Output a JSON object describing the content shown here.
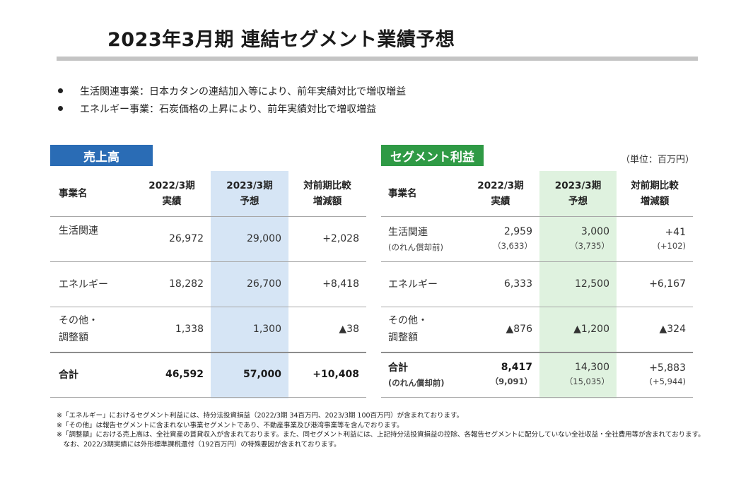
{
  "title": "2023年3月期 連結セグメント業績予想",
  "bullets": [
    "生活関連事業：日本カタンの連結加入等により、前年実績対比で増収増益",
    "エネルギー事業：石炭価格の上昇により、前年実績対比で増収増益"
  ],
  "colors": {
    "sales_tag": "#2a6cb5",
    "profit_tag": "#2f9a45",
    "sales_highlight": "#d6e5f5",
    "profit_highlight": "#dff2df"
  },
  "sales": {
    "tag": "売上高",
    "headers": {
      "name": "事業名",
      "prev_1": "2022/3期",
      "prev_2": "実績",
      "fcst_1": "2023/3期",
      "fcst_2": "予想",
      "diff_1": "対前期比較",
      "diff_2": "増減額"
    },
    "rows": [
      {
        "name": "生活関連",
        "prev": "26,972",
        "fcst": "29,000",
        "diff": "+2,028"
      },
      {
        "name": "エネルギー",
        "prev": "18,282",
        "fcst": "26,700",
        "diff": "+8,418"
      },
      {
        "name_1": "その他・",
        "name_2": "調整額",
        "prev": "1,338",
        "fcst": "1,300",
        "diff": "▲38"
      }
    ],
    "total": {
      "name": "合計",
      "prev": "46,592",
      "fcst": "57,000",
      "diff": "+10,408"
    }
  },
  "profit": {
    "tag": "セグメント利益",
    "unit": "（単位：百万円）",
    "headers": {
      "name": "事業名",
      "prev_1": "2022/3期",
      "prev_2": "実績",
      "fcst_1": "2023/3期",
      "fcst_2": "予想",
      "diff_1": "対前期比較",
      "diff_2": "増減額"
    },
    "rows": [
      {
        "name": "生活関連",
        "name_sub": "(のれん償却前)",
        "prev": "2,959",
        "prev_sub": "（3,633）",
        "fcst": "3,000",
        "fcst_sub": "（3,735）",
        "diff": "+41",
        "diff_sub": "(+102)"
      },
      {
        "name": "エネルギー",
        "prev": "6,333",
        "fcst": "12,500",
        "diff": "+6,167"
      },
      {
        "name_1": "その他・",
        "name_2": "調整額",
        "prev": "▲876",
        "fcst": "▲1,200",
        "diff": "▲324"
      }
    ],
    "total": {
      "name": "合計",
      "name_sub": "(のれん償却前)",
      "prev": "8,417",
      "prev_sub": "（9,091）",
      "fcst": "14,300",
      "fcst_sub": "（15,035）",
      "diff": "+5,883",
      "diff_sub": "(+5,944)"
    }
  },
  "footnotes": [
    "※「エネルギー」におけるセグメント利益には、持分法投資損益（2022/3期 34百万円、2023/3期 100百万円）が含まれております。",
    "※「その他」は報告セグメントに含まれない事業セグメントであり、不動産事業及び港湾事業等を含んでおります。",
    "※「調整額」における売上高は、全社資産の賃貸収入が含まれております。また、同セグメント利益には、上記持分法投資損益の控除、各報告セグメントに配分していない全社収益・全社費用等が含まれております。",
    "　なお、2022/3期実績には外形標準課税還付（192百万円）の特殊要因が含まれております。"
  ]
}
